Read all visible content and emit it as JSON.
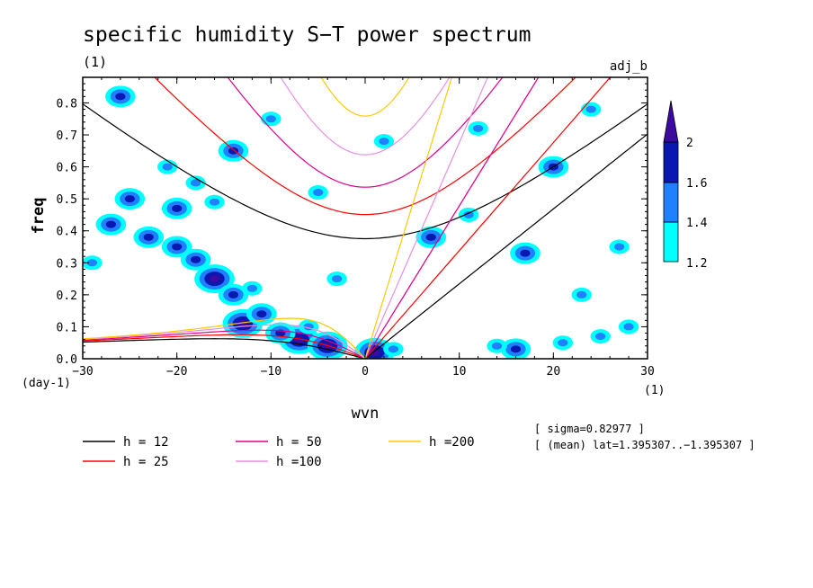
{
  "chart_data": {
    "type": "heatmap",
    "title": "specific humidity S−T power spectrum",
    "subtitle_left": "(1)",
    "subtitle_right": "adj_b",
    "xlabel": "wvn",
    "ylabel": "freq",
    "x_unit_label": "(1)",
    "y_unit_label": "(day-1)",
    "xlim": [
      -30,
      30
    ],
    "ylim": [
      0,
      0.88
    ],
    "x_ticks": [
      -30,
      -20,
      -10,
      0,
      10,
      20,
      30
    ],
    "x_tick_labels": [
      "−30",
      "−20",
      "−10",
      "0",
      "10",
      "20",
      "30"
    ],
    "y_ticks": [
      0,
      0.1,
      0.2,
      0.3,
      0.4,
      0.5,
      0.6,
      0.7,
      0.8
    ],
    "y_tick_labels": [
      "0.0",
      "0.1",
      "0.2",
      "0.3",
      "0.4",
      "0.5",
      "0.6",
      "0.7",
      "0.8"
    ],
    "colorbar": {
      "levels": [
        1.2,
        1.4,
        1.6,
        2
      ],
      "level_labels": [
        "1.2",
        "1.4",
        "1.6",
        "2"
      ],
      "colors": [
        "#00ffff",
        "#2080ff",
        "#0818b0",
        "#3b0aa0"
      ]
    },
    "dispersion_curves": [
      {
        "label": "h = 12",
        "h": 12,
        "color": "#000000"
      },
      {
        "label": "h = 25",
        "h": 25,
        "color": "#ff0000"
      },
      {
        "label": "h = 50",
        "h": 50,
        "color": "#e0008c"
      },
      {
        "label": "h =100",
        "h": 100,
        "color": "#e890e0"
      },
      {
        "label": "h =200",
        "h": 200,
        "color": "#ffc800"
      }
    ],
    "annotations": [
      "[ sigma=0.82977 ]",
      "[ (mean) lat=1.395307..−1.395307 ]"
    ],
    "blobs": [
      {
        "x": -7,
        "y": 0.06,
        "level": 3
      },
      {
        "x": -4,
        "y": 0.04,
        "level": 3
      },
      {
        "x": -9,
        "y": 0.08,
        "level": 2
      },
      {
        "x": -13,
        "y": 0.11,
        "level": 3
      },
      {
        "x": -16,
        "y": 0.25,
        "level": 3
      },
      {
        "x": -18,
        "y": 0.31,
        "level": 2
      },
      {
        "x": -20,
        "y": 0.35,
        "level": 2
      },
      {
        "x": -23,
        "y": 0.38,
        "level": 2
      },
      {
        "x": -14,
        "y": 0.2,
        "level": 2
      },
      {
        "x": -11,
        "y": 0.14,
        "level": 2
      },
      {
        "x": -12,
        "y": 0.22,
        "level": 1
      },
      {
        "x": -6,
        "y": 0.1,
        "level": 1
      },
      {
        "x": 1,
        "y": 0.02,
        "level": 3
      },
      {
        "x": 3,
        "y": 0.03,
        "level": 1
      },
      {
        "x": -25,
        "y": 0.5,
        "level": 2
      },
      {
        "x": -20,
        "y": 0.47,
        "level": 2
      },
      {
        "x": -16,
        "y": 0.49,
        "level": 1
      },
      {
        "x": -29,
        "y": 0.3,
        "level": 1
      },
      {
        "x": -27,
        "y": 0.42,
        "level": 2
      },
      {
        "x": -21,
        "y": 0.6,
        "level": 1
      },
      {
        "x": 16,
        "y": 0.03,
        "level": 2
      },
      {
        "x": 14,
        "y": 0.04,
        "level": 1
      },
      {
        "x": 21,
        "y": 0.05,
        "level": 1
      },
      {
        "x": 25,
        "y": 0.07,
        "level": 1
      },
      {
        "x": 20,
        "y": 0.6,
        "level": 2
      },
      {
        "x": 23,
        "y": 0.2,
        "level": 1
      },
      {
        "x": 27,
        "y": 0.35,
        "level": 1
      },
      {
        "x": 11,
        "y": 0.45,
        "level": 1
      },
      {
        "x": 7,
        "y": 0.38,
        "level": 2
      },
      {
        "x": -10,
        "y": 0.75,
        "level": 1
      },
      {
        "x": -14,
        "y": 0.65,
        "level": 2
      },
      {
        "x": -26,
        "y": 0.82,
        "level": 2
      },
      {
        "x": -5,
        "y": 0.52,
        "level": 1
      },
      {
        "x": 2,
        "y": 0.68,
        "level": 1
      },
      {
        "x": 12,
        "y": 0.72,
        "level": 1
      },
      {
        "x": 28,
        "y": 0.1,
        "level": 1
      },
      {
        "x": -3,
        "y": 0.25,
        "level": 1
      },
      {
        "x": 17,
        "y": 0.33,
        "level": 2
      },
      {
        "x": 24,
        "y": 0.78,
        "level": 1
      },
      {
        "x": -18,
        "y": 0.55,
        "level": 1
      }
    ]
  }
}
